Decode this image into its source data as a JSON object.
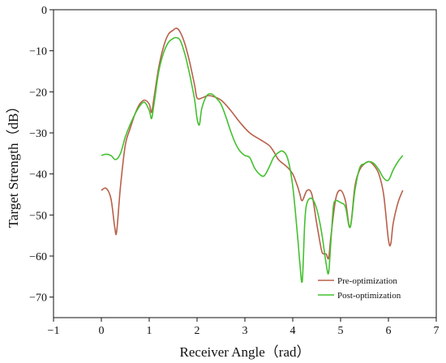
{
  "chart_data": {
    "type": "line",
    "xlabel": "Receiver Angle（rad）",
    "ylabel": "Target Strength（dB）",
    "xlim": [
      -1,
      7
    ],
    "ylim": [
      -75,
      0
    ],
    "xticks": [
      -1,
      0,
      1,
      2,
      3,
      4,
      5,
      6,
      7
    ],
    "yticks": [
      0,
      -10,
      -20,
      -30,
      -40,
      -50,
      -60,
      -70
    ],
    "legend_position": "bottom-right",
    "series": [
      {
        "name": "Pre-optimization",
        "color": "#b8604a",
        "x": [
          0,
          0.1,
          0.2,
          0.28,
          0.32,
          0.4,
          0.5,
          0.6,
          0.7,
          0.8,
          0.9,
          1.0,
          1.05,
          1.1,
          1.2,
          1.3,
          1.4,
          1.5,
          1.57,
          1.65,
          1.75,
          1.85,
          1.95,
          2.0,
          2.1,
          2.2,
          2.3,
          2.5,
          2.7,
          2.9,
          3.1,
          3.3,
          3.5,
          3.6,
          3.7,
          3.8,
          3.9,
          4.0,
          4.1,
          4.15,
          4.2,
          4.3,
          4.4,
          4.5,
          4.6,
          4.65,
          4.7,
          4.75,
          4.8,
          4.9,
          5.0,
          5.1,
          5.2,
          5.3,
          5.4,
          5.5,
          5.6,
          5.7,
          5.8,
          5.9,
          6.0,
          6.05,
          6.1,
          6.2,
          6.3
        ],
        "y": [
          -44,
          -43.5,
          -46,
          -53,
          -54,
          -43,
          -33,
          -29,
          -25.5,
          -23,
          -22,
          -23,
          -25,
          -21.5,
          -14,
          -9,
          -6,
          -5,
          -4.5,
          -5.5,
          -8.5,
          -13,
          -18.5,
          -21.5,
          -21.5,
          -21,
          -21,
          -22,
          -24.5,
          -27.5,
          -30,
          -31.5,
          -33,
          -34.5,
          -36.5,
          -37.5,
          -38.5,
          -40,
          -43,
          -45,
          -46.5,
          -44,
          -45,
          -52,
          -58.5,
          -59.5,
          -59.5,
          -60.5,
          -55,
          -46,
          -44,
          -46.5,
          -53,
          -43,
          -39,
          -37.5,
          -37,
          -38,
          -40,
          -45,
          -56,
          -57,
          -52,
          -47,
          -44
        ]
      },
      {
        "name": "Post-optimization",
        "color": "#44c030",
        "x": [
          0,
          0.1,
          0.2,
          0.3,
          0.4,
          0.5,
          0.6,
          0.7,
          0.8,
          0.9,
          1.0,
          1.05,
          1.1,
          1.2,
          1.3,
          1.4,
          1.5,
          1.57,
          1.65,
          1.75,
          1.85,
          1.95,
          2.0,
          2.05,
          2.1,
          2.2,
          2.3,
          2.4,
          2.5,
          2.6,
          2.7,
          2.8,
          2.9,
          3.0,
          3.1,
          3.2,
          3.3,
          3.4,
          3.5,
          3.6,
          3.7,
          3.8,
          3.9,
          4.0,
          4.1,
          4.15,
          4.2,
          4.25,
          4.3,
          4.4,
          4.5,
          4.6,
          4.7,
          4.75,
          4.8,
          4.85,
          4.9,
          5.0,
          5.1,
          5.2,
          5.3,
          5.4,
          5.5,
          5.6,
          5.7,
          5.8,
          5.9,
          6.0,
          6.1,
          6.2,
          6.3
        ],
        "y": [
          -35.5,
          -35.2,
          -35.5,
          -36.5,
          -35,
          -31,
          -28,
          -25.5,
          -23.5,
          -22.5,
          -24.5,
          -26.5,
          -23,
          -15,
          -10.5,
          -8,
          -7,
          -6.8,
          -7.5,
          -11,
          -16,
          -22,
          -26.5,
          -28,
          -24,
          -21,
          -20.5,
          -21.5,
          -23,
          -26,
          -29.5,
          -32.5,
          -34.5,
          -35.5,
          -36,
          -38.5,
          -40,
          -40.5,
          -38.5,
          -36,
          -34.8,
          -34.5,
          -36.5,
          -43,
          -55,
          -62,
          -66,
          -52,
          -47,
          -46,
          -48.5,
          -54,
          -62,
          -64,
          -56,
          -48,
          -46.5,
          -47,
          -48,
          -53,
          -44,
          -38.5,
          -37.5,
          -37,
          -37.5,
          -39,
          -41,
          -41.5,
          -39,
          -37,
          -35.5
        ]
      }
    ]
  }
}
